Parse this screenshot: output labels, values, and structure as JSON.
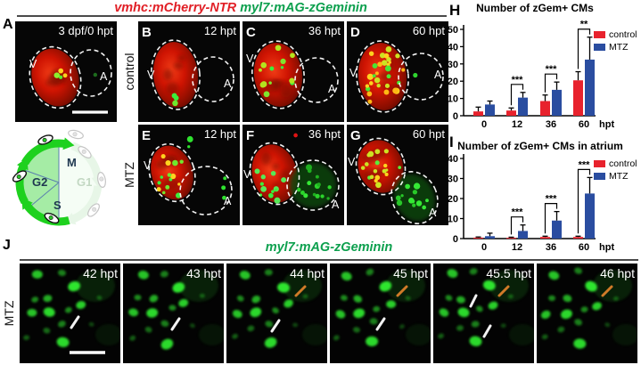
{
  "figure": {
    "header_title_red": "vmhc:mCherry-NTR",
    "header_title_green": "myl7:mAG-zGeminin"
  },
  "row_labels": {
    "control": "control",
    "mtz": "MTZ"
  },
  "panels": [
    {
      "letter": "A",
      "time": "3 dpf/0 hpt",
      "ventricle_label": "V",
      "atrium_label": "A"
    },
    {
      "letter": "B",
      "time": "12 hpt",
      "ventricle_label": "V",
      "atrium_label": "A"
    },
    {
      "letter": "C",
      "time": "36 hpt",
      "ventricle_label": "V",
      "atrium_label": "A"
    },
    {
      "letter": "D",
      "time": "60 hpt",
      "ventricle_label": "V",
      "atrium_label": "A"
    },
    {
      "letter": "E",
      "time": "12 hpt",
      "ventricle_label": "V",
      "atrium_label": "A"
    },
    {
      "letter": "F",
      "time": "36 hpt",
      "ventricle_label": "V",
      "atrium_label": "A"
    },
    {
      "letter": "G",
      "time": "60 hpt",
      "ventricle_label": "V",
      "atrium_label": "A"
    }
  ],
  "cell_cycle": {
    "m_label": "M",
    "g2_label": "G2",
    "s_label": "S",
    "g1_label": "G1"
  },
  "chart_data": [
    {
      "type": "bar",
      "panel_letter": "H",
      "title": "Number of zGem+ CMs",
      "categories": [
        "0",
        "12",
        "36",
        "60"
      ],
      "series": [
        {
          "name": "control",
          "color": "#e8222d",
          "values": [
            2.5,
            3,
            8.5,
            20.5
          ],
          "errors": [
            2.5,
            1.5,
            3.5,
            5
          ]
        },
        {
          "name": "MTZ",
          "color": "#2a4da0",
          "values": [
            6.5,
            10.5,
            15,
            32.5
          ],
          "errors": [
            2,
            3,
            4.5,
            13
          ]
        }
      ],
      "significance": [
        null,
        "***",
        "***",
        "**"
      ],
      "xlabel": "hpt",
      "ylabel": "",
      "ylim": [
        0,
        50
      ],
      "yticks": [
        0,
        10,
        20,
        30,
        40,
        50
      ],
      "grid": false,
      "legend_position": "right"
    },
    {
      "type": "bar",
      "panel_letter": "I",
      "title": "Number of zGem+ CMs in atrium",
      "categories": [
        "0",
        "12",
        "36",
        "60"
      ],
      "series": [
        {
          "name": "control",
          "color": "#e8222d",
          "values": [
            0.5,
            0.4,
            0.8,
            0.8
          ],
          "errors": [
            0.3,
            0.3,
            0.4,
            0.4
          ]
        },
        {
          "name": "MTZ",
          "color": "#2a4da0",
          "values": [
            1.2,
            3.8,
            9,
            22.5
          ],
          "errors": [
            1.5,
            3,
            4.5,
            8
          ]
        }
      ],
      "significance": [
        null,
        "***",
        "***",
        "***"
      ],
      "xlabel": "hpt",
      "ylabel": "",
      "ylim": [
        0,
        40
      ],
      "yticks": [
        0,
        10,
        20,
        30,
        40
      ],
      "grid": false,
      "legend_position": "right"
    }
  ],
  "panel_j": {
    "letter": "J",
    "title": "myl7:mAG-zGeminin",
    "row_label": "MTZ",
    "frames": [
      {
        "time": "42 hpt"
      },
      {
        "time": "43 hpt"
      },
      {
        "time": "44 hpt"
      },
      {
        "time": "45 hpt"
      },
      {
        "time": "45.5 hpt"
      },
      {
        "time": "46 hpt"
      }
    ]
  },
  "colors": {
    "control_red": "#e8222d",
    "mtz_blue": "#2a4da0",
    "title_red": "#e11f26",
    "title_green": "#0da04e",
    "annotation_orange": "#d07a28"
  }
}
